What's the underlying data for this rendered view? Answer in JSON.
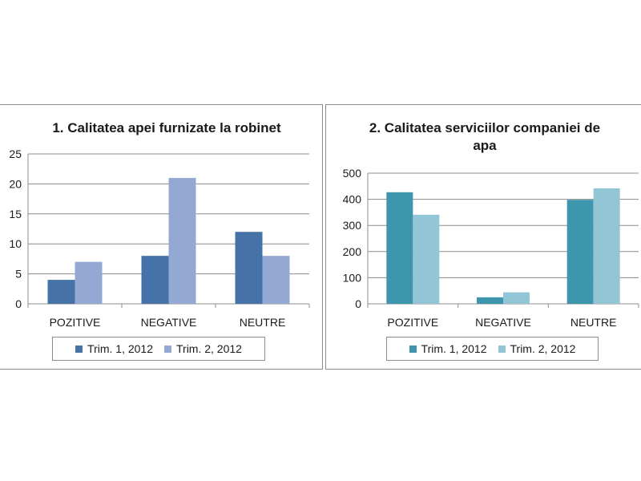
{
  "charts": [
    {
      "title": "1. Calitatea apei furnizate la robinet",
      "legend": [
        "Trim. 1, 2012",
        "Trim. 2, 2012"
      ]
    },
    {
      "title": "2. Calitatea serviciilor companiei de apa",
      "legend": [
        "Trim. 1, 2012",
        "Trim. 2, 2012"
      ]
    }
  ],
  "chart_data": [
    {
      "type": "bar",
      "title": "1. Calitatea apei furnizate la robinet",
      "categories": [
        "POZITIVE",
        "NEGATIVE",
        "NEUTRE"
      ],
      "series": [
        {
          "name": "Trim. 1, 2012",
          "values": [
            4,
            8,
            12
          ],
          "color": "#4572a7"
        },
        {
          "name": "Trim. 2, 2012",
          "values": [
            7,
            21,
            8
          ],
          "color": "#93a9d4"
        }
      ],
      "ylim": [
        0,
        25
      ],
      "yticks": [
        0,
        5,
        10,
        15,
        20,
        25
      ],
      "grid": true,
      "legend_position": "bottom"
    },
    {
      "type": "bar",
      "title": "2. Calitatea serviciilor companiei de apa",
      "categories": [
        "POZITIVE",
        "NEGATIVE",
        "NEUTRE"
      ],
      "series": [
        {
          "name": "Trim. 1, 2012",
          "values": [
            427,
            25,
            398
          ],
          "color": "#3d96ae"
        },
        {
          "name": "Trim. 2, 2012",
          "values": [
            341,
            44,
            442
          ],
          "color": "#92c5d6"
        }
      ],
      "ylim": [
        0,
        500
      ],
      "yticks": [
        0,
        100,
        200,
        300,
        400,
        500
      ],
      "grid": true,
      "legend_position": "bottom"
    }
  ]
}
